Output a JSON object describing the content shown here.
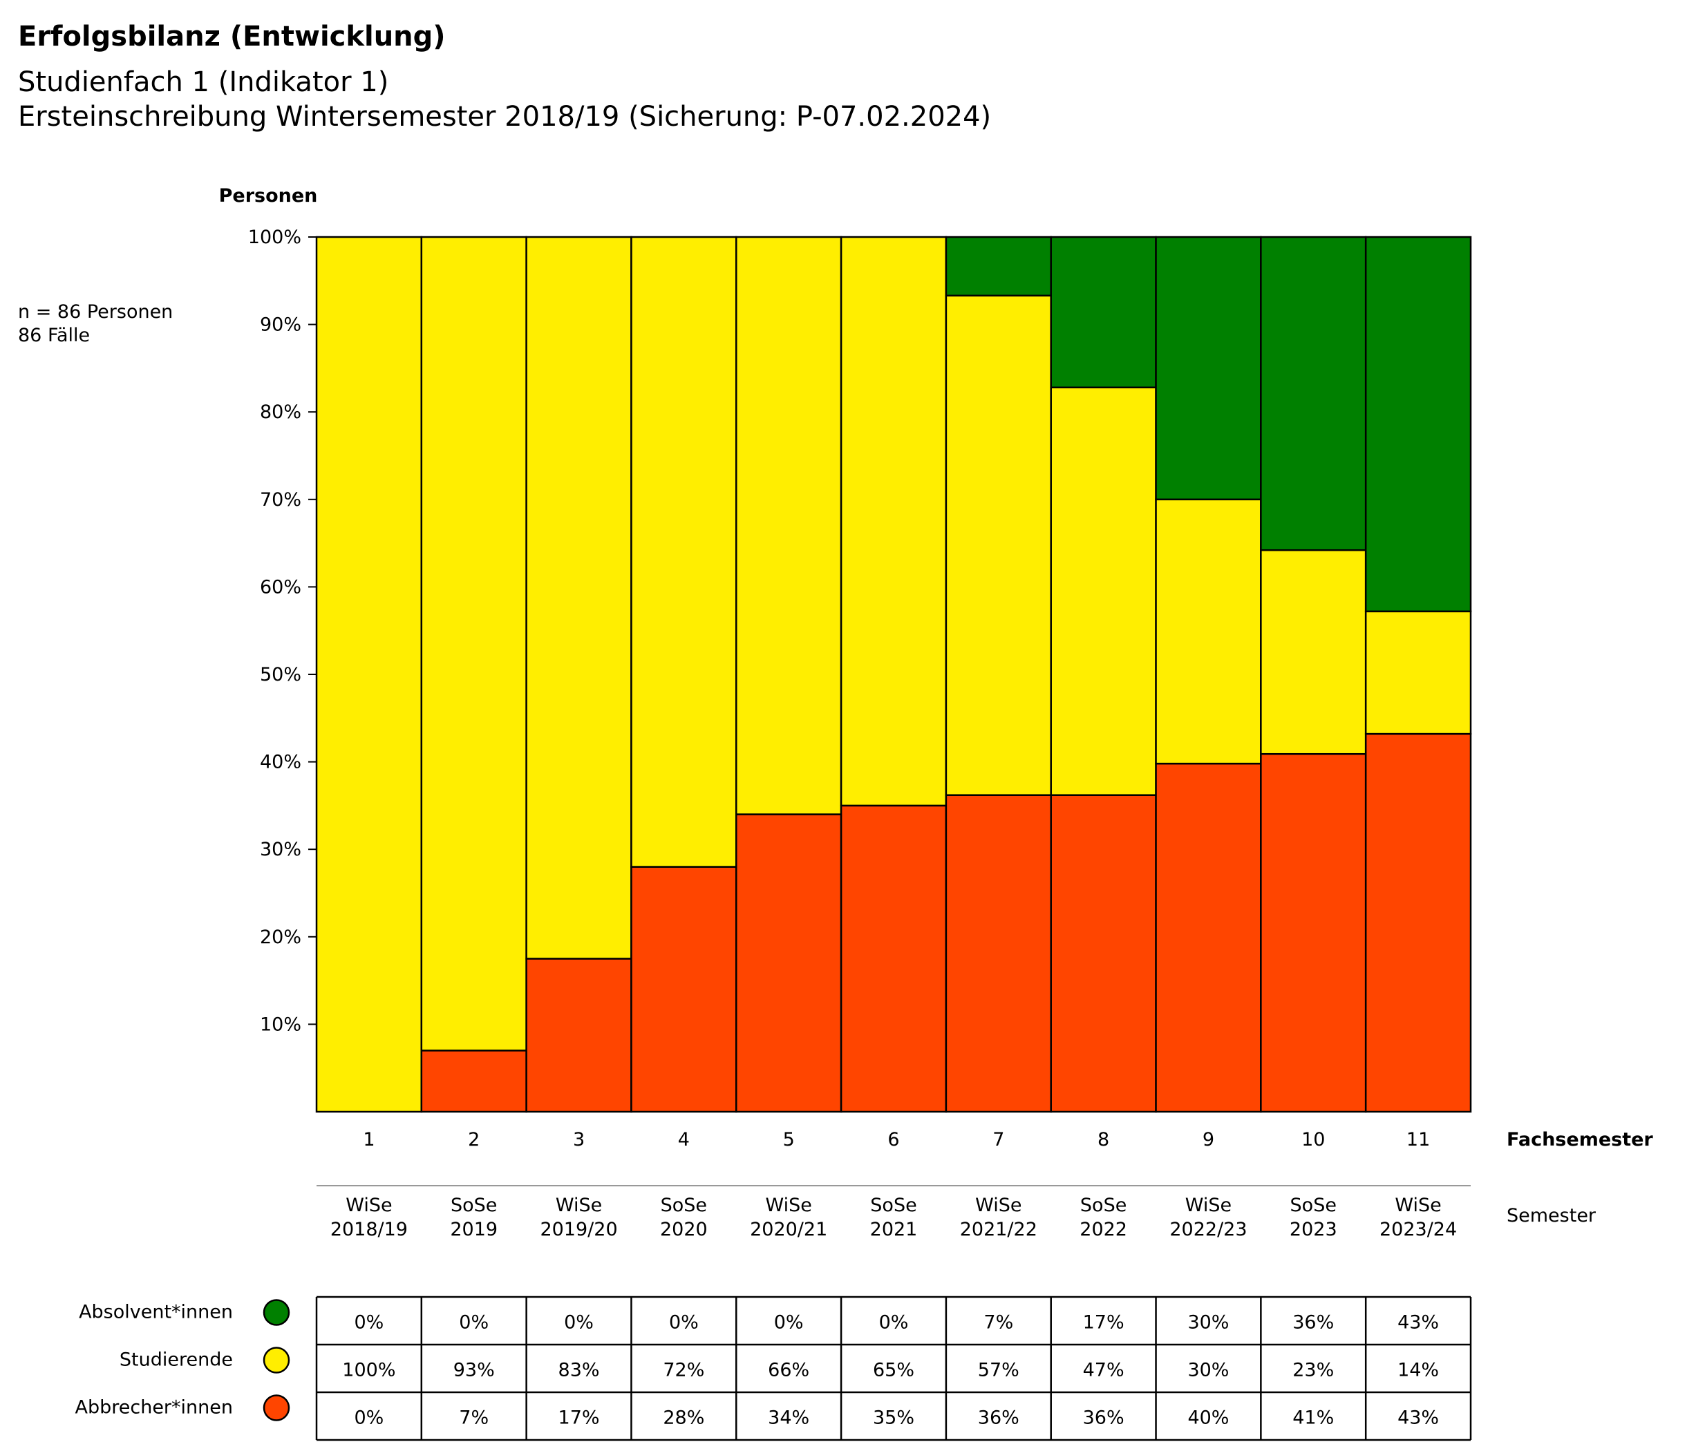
{
  "title": "Erfolgsbilanz  (Entwicklung)",
  "subtitle_line1": "Studienfach 1 (Indikator 1)",
  "subtitle_line2": "Ersteinschreibung Wintersemester 2018/19  (Sicherung: P-07.02.2024)",
  "n_note": "n = 86  Personen",
  "cases_note": "86  Fälle",
  "colors": {
    "absolventen": "#008000",
    "studierende": "#ffee00",
    "abbrecher": "#ff4500"
  },
  "chart_data": {
    "type": "bar",
    "stacked": true,
    "ylabel": "Personen",
    "xlabel": "Fachsemester",
    "x2label": "Semester",
    "ylim": [
      0,
      100
    ],
    "yticks": [
      "10%",
      "20%",
      "30%",
      "40%",
      "50%",
      "60%",
      "70%",
      "80%",
      "90%",
      "100%"
    ],
    "categories": [
      "1",
      "2",
      "3",
      "4",
      "5",
      "6",
      "7",
      "8",
      "9",
      "10",
      "11"
    ],
    "semesters": [
      [
        "WiSe",
        "2018/19"
      ],
      [
        "SoSe",
        "2019"
      ],
      [
        "WiSe",
        "2019/20"
      ],
      [
        "SoSe",
        "2020"
      ],
      [
        "WiSe",
        "2020/21"
      ],
      [
        "SoSe",
        "2021"
      ],
      [
        "WiSe",
        "2021/22"
      ],
      [
        "SoSe",
        "2022"
      ],
      [
        "WiSe",
        "2022/23"
      ],
      [
        "SoSe",
        "2023"
      ],
      [
        "WiSe",
        "2023/24"
      ]
    ],
    "series": [
      {
        "name": "Abbrecher*innen",
        "color": "#ff4500",
        "values": [
          0,
          7,
          17.5,
          28,
          34,
          35,
          36.2,
          36.2,
          39.8,
          40.9,
          43.2
        ]
      },
      {
        "name": "Studierende",
        "color": "#ffee00",
        "values": [
          100,
          93,
          82.5,
          72,
          66,
          65,
          57.1,
          46.6,
          30.2,
          23.3,
          14
        ]
      },
      {
        "name": "Absolvent*innen",
        "color": "#008000",
        "values": [
          0,
          0,
          0,
          0,
          0,
          0,
          6.7,
          17.2,
          30,
          35.8,
          42.8
        ]
      }
    ],
    "table": {
      "rows": [
        {
          "name": "Absolvent*innen",
          "color": "#008000",
          "labels": [
            "0%",
            "0%",
            "0%",
            "0%",
            "0%",
            "0%",
            "7%",
            "17%",
            "30%",
            "36%",
            "43%"
          ]
        },
        {
          "name": "Studierende",
          "color": "#ffee00",
          "labels": [
            "100%",
            "93%",
            "83%",
            "72%",
            "66%",
            "65%",
            "57%",
            "47%",
            "30%",
            "23%",
            "14%"
          ]
        },
        {
          "name": "Abbrecher*innen",
          "color": "#ff4500",
          "labels": [
            "0%",
            "7%",
            "17%",
            "28%",
            "34%",
            "35%",
            "36%",
            "36%",
            "40%",
            "41%",
            "43%"
          ]
        }
      ]
    }
  }
}
